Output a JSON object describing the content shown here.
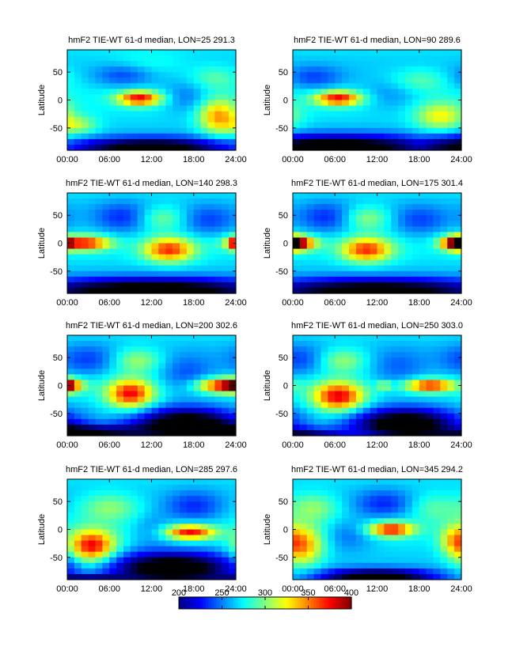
{
  "chart_data": {
    "type": "heatmap",
    "colorbar": {
      "min": 200,
      "max": 400,
      "ticks": [
        "200",
        "250",
        "300",
        "350",
        "400"
      ],
      "colormap": "jet"
    },
    "xticks": [
      "00:00",
      "06:00",
      "12:00",
      "18:00",
      "24:00"
    ],
    "yticks": [
      "50",
      "0",
      "-50"
    ],
    "ylabel": "Latitude",
    "xlim": [
      0,
      24
    ],
    "ylim": [
      -90,
      90
    ],
    "panels": [
      {
        "title": "hmF2  TIE-WT 61-d median, LON=25 291.3",
        "blobs": [
          {
            "t": 10.3,
            "lat": 3,
            "st": 2.2,
            "sl": 9,
            "a": 105
          },
          {
            "t": 21.5,
            "lat": -30,
            "st": 2.0,
            "sl": 22,
            "a": 75
          },
          {
            "t": 1.5,
            "lat": -45,
            "st": 2.0,
            "sl": 12,
            "a": 40
          },
          {
            "t": 21,
            "lat": 40,
            "st": 2.5,
            "sl": 15,
            "a": 25
          },
          {
            "t": 11,
            "lat": 65,
            "st": 4,
            "sl": 15,
            "a": 15
          }
        ],
        "cold": [
          {
            "t": 8,
            "lat": 45,
            "st": 3,
            "sl": 15,
            "a": 30
          },
          {
            "t": 17,
            "lat": 5,
            "st": 2.5,
            "sl": 20,
            "a": 25
          }
        ],
        "south": [
          {
            "t": 12,
            "lat": -85,
            "st": 8,
            "sl": 12,
            "a": 110
          }
        ]
      },
      {
        "title": "hmF2  TIE-WT 61-d median, LON=90 289.6",
        "blobs": [
          {
            "t": 6.5,
            "lat": 3,
            "st": 2.3,
            "sl": 9,
            "a": 105
          },
          {
            "t": 21,
            "lat": -30,
            "st": 2.5,
            "sl": 18,
            "a": 55
          },
          {
            "t": 18,
            "lat": 35,
            "st": 3,
            "sl": 15,
            "a": 25
          }
        ],
        "cold": [
          {
            "t": 3,
            "lat": 40,
            "st": 3,
            "sl": 15,
            "a": 30
          },
          {
            "t": 14,
            "lat": 10,
            "st": 3,
            "sl": 20,
            "a": 20
          }
        ],
        "south": [
          {
            "t": 6,
            "lat": -85,
            "st": 10,
            "sl": 15,
            "a": 120
          }
        ]
      },
      {
        "title": "hmF2  TIE-WT 61-d median, LON=140 298.3",
        "blobs": [
          {
            "t": 2.5,
            "lat": 0,
            "st": 2.5,
            "sl": 9,
            "a": 105
          },
          {
            "t": 14.5,
            "lat": -12,
            "st": 2.5,
            "sl": 15,
            "a": 95
          },
          {
            "t": 24,
            "lat": 0,
            "st": 0.8,
            "sl": 8,
            "a": 80
          },
          {
            "t": 13.5,
            "lat": 45,
            "st": 2.5,
            "sl": 15,
            "a": 35
          }
        ],
        "cold": [
          {
            "t": 8,
            "lat": 45,
            "st": 3,
            "sl": 20,
            "a": 35
          },
          {
            "t": 20,
            "lat": 40,
            "st": 3,
            "sl": 20,
            "a": 30
          }
        ],
        "south": [
          {
            "t": 12,
            "lat": -85,
            "st": 12,
            "sl": 15,
            "a": 120
          }
        ]
      },
      {
        "title": "hmF2  TIE-WT 61-d median, LON=175 301.4",
        "blobs": [
          {
            "t": 0.5,
            "lat": 0,
            "st": 2.0,
            "sl": 9,
            "a": 105
          },
          {
            "t": 10.5,
            "lat": -12,
            "st": 2.5,
            "sl": 15,
            "a": 95
          },
          {
            "t": 23.5,
            "lat": 0,
            "st": 1.5,
            "sl": 9,
            "a": 100
          },
          {
            "t": 10.5,
            "lat": 45,
            "st": 2.5,
            "sl": 15,
            "a": 40
          }
        ],
        "cold": [
          {
            "t": 5,
            "lat": 45,
            "st": 3,
            "sl": 20,
            "a": 35
          },
          {
            "t": 18,
            "lat": 40,
            "st": 3,
            "sl": 20,
            "a": 30
          }
        ],
        "south": [
          {
            "t": 12,
            "lat": -85,
            "st": 12,
            "sl": 15,
            "a": 110
          }
        ]
      },
      {
        "title": "hmF2  TIE-WT 61-d median, LON=200 302.6",
        "blobs": [
          {
            "t": 0,
            "lat": 0,
            "st": 1.2,
            "sl": 8,
            "a": 85
          },
          {
            "t": 9,
            "lat": -15,
            "st": 2.3,
            "sl": 18,
            "a": 105
          },
          {
            "t": 22,
            "lat": 0,
            "st": 2.5,
            "sl": 9,
            "a": 105
          },
          {
            "t": 10,
            "lat": 45,
            "st": 2.5,
            "sl": 15,
            "a": 40
          }
        ],
        "cold": [
          {
            "t": 3,
            "lat": 45,
            "st": 3,
            "sl": 20,
            "a": 30
          },
          {
            "t": 17,
            "lat": 20,
            "st": 3,
            "sl": 25,
            "a": 30
          }
        ],
        "south": [
          {
            "t": 17,
            "lat": -70,
            "st": 5,
            "sl": 20,
            "a": 120
          },
          {
            "t": 3,
            "lat": -85,
            "st": 6,
            "sl": 10,
            "a": 90
          }
        ]
      },
      {
        "title": "hmF2  TIE-WT 61-d median, LON=250 303.0",
        "blobs": [
          {
            "t": 6.5,
            "lat": -20,
            "st": 2.5,
            "sl": 18,
            "a": 110
          },
          {
            "t": 19.5,
            "lat": 0,
            "st": 2.5,
            "sl": 8,
            "a": 105
          },
          {
            "t": 7,
            "lat": 45,
            "st": 2.5,
            "sl": 15,
            "a": 40
          },
          {
            "t": 13,
            "lat": 0,
            "st": 0.7,
            "sl": 5,
            "a": 50
          }
        ],
        "cold": [
          {
            "t": 1,
            "lat": 45,
            "st": 3,
            "sl": 20,
            "a": 30
          },
          {
            "t": 15,
            "lat": 30,
            "st": 3,
            "sl": 25,
            "a": 25
          }
        ],
        "south": [
          {
            "t": 16,
            "lat": -70,
            "st": 5,
            "sl": 20,
            "a": 120
          },
          {
            "t": 2,
            "lat": -88,
            "st": 4,
            "sl": 8,
            "a": 70
          }
        ]
      },
      {
        "title": "hmF2  TIE-WT 61-d median, LON=285 297.6",
        "blobs": [
          {
            "t": 3.5,
            "lat": -30,
            "st": 2.3,
            "sl": 20,
            "a": 110
          },
          {
            "t": 17.5,
            "lat": -5,
            "st": 2.5,
            "sl": 9,
            "a": 105
          },
          {
            "t": 6,
            "lat": 40,
            "st": 3,
            "sl": 18,
            "a": 35
          }
        ],
        "cold": [
          {
            "t": 18,
            "lat": 40,
            "st": 3,
            "sl": 20,
            "a": 35
          },
          {
            "t": 12,
            "lat": 0,
            "st": 2,
            "sl": 20,
            "a": 20
          }
        ],
        "south": [
          {
            "t": 15,
            "lat": -70,
            "st": 6,
            "sl": 20,
            "a": 120
          },
          {
            "t": 3,
            "lat": -88,
            "st": 4,
            "sl": 6,
            "a": 60
          }
        ]
      },
      {
        "title": "hmF2  TIE-WT 61-d median, LON=345 294.2",
        "blobs": [
          {
            "t": 1.5,
            "lat": -30,
            "st": 2.0,
            "sl": 25,
            "a": 75
          },
          {
            "t": 14,
            "lat": 0,
            "st": 2.2,
            "sl": 9,
            "a": 105
          },
          {
            "t": 23,
            "lat": -20,
            "st": 1.5,
            "sl": 20,
            "a": 50
          },
          {
            "t": 3,
            "lat": 40,
            "st": 2.5,
            "sl": 18,
            "a": 35
          },
          {
            "t": 20,
            "lat": 40,
            "st": 2.5,
            "sl": 18,
            "a": 25
          }
        ],
        "cold": [
          {
            "t": 13,
            "lat": 45,
            "st": 3,
            "sl": 18,
            "a": 35
          },
          {
            "t": 8,
            "lat": -10,
            "st": 2.5,
            "sl": 20,
            "a": 25
          }
        ],
        "south": [
          {
            "t": 12,
            "lat": -85,
            "st": 6,
            "sl": 10,
            "a": 110
          }
        ]
      }
    ]
  }
}
